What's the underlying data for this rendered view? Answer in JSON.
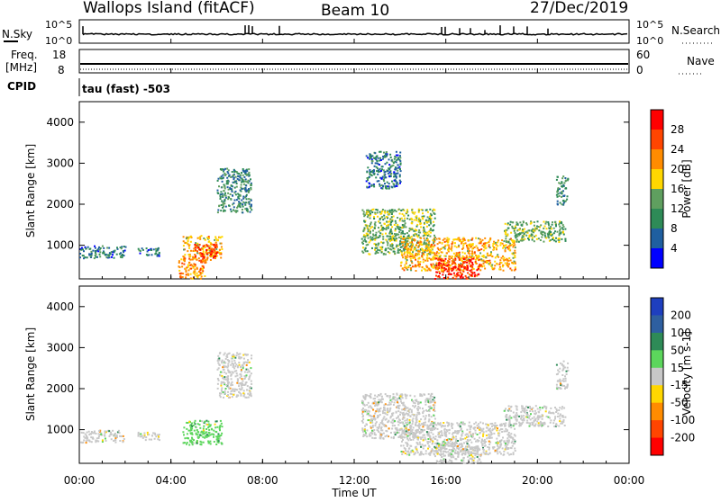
{
  "header": {
    "station": "Wallops Island (fitACF)",
    "beam": "Beam 10",
    "date": "27/Dec/2019"
  },
  "strip": {
    "nsky_label": "N.Sky",
    "nsky_ticks": [
      "10^5",
      "10^0"
    ],
    "nsearch_label": "N.Search",
    "nsearch_ticks": [
      "10^5",
      "10^0"
    ],
    "freq_label_line1": "Freq.",
    "freq_label_line2": "[MHz]",
    "freq_ticks": [
      "18",
      "8"
    ],
    "nave_label": "Nave",
    "nave_ticks": [
      "60",
      "0"
    ],
    "cpid_label": "CPID",
    "cpid_text": "tau (fast) -503"
  },
  "xaxis": {
    "label": "Time UT",
    "ticks": [
      "00:00",
      "04:00",
      "08:00",
      "12:00",
      "16:00",
      "20:00",
      "00:00"
    ]
  },
  "power_panel": {
    "ylabel": "Slant Range [km]",
    "cbar_label": "Power [dB]",
    "cbar_ticks": [
      "28",
      "24",
      "20",
      "16",
      "12",
      "8",
      "4"
    ],
    "cbar_colors": [
      "#ff0000",
      "#ff4500",
      "#ff8c00",
      "#ffd700",
      "#5f9f5f",
      "#2e8b57",
      "#1f5fa0",
      "#0000ff"
    ]
  },
  "velocity_panel": {
    "ylabel": "Slant Range [km]",
    "cbar_label": "Velocity [m s-1]",
    "cbar_ticks": [
      "200",
      "100",
      "50",
      "15",
      "-15",
      "-50",
      "-100",
      "-200"
    ],
    "cbar_colors": [
      "#1e3fbf",
      "#2e5fa0",
      "#2e8b57",
      "#5cd65c",
      "#c8c8c8",
      "#ffd700",
      "#ff8c00",
      "#ff4500",
      "#ff0000"
    ]
  },
  "chart_data": [
    {
      "type": "heatmap",
      "title": "Power [dB]",
      "xlabel": "Time UT",
      "ylabel": "Slant Range [km]",
      "xlim": [
        0,
        24
      ],
      "ylim": [
        180,
        4500
      ],
      "yticks": [
        1000,
        2000,
        3000,
        4000
      ],
      "clim": [
        0,
        32
      ],
      "regions": [
        {
          "t": [
            0.0,
            2.0
          ],
          "r": [
            700,
            1000
          ],
          "level": 8
        },
        {
          "t": [
            2.5,
            3.5
          ],
          "r": [
            750,
            950
          ],
          "level": 8
        },
        {
          "t": [
            4.5,
            6.2
          ],
          "r": [
            650,
            1250
          ],
          "level": 20
        },
        {
          "t": [
            5.0,
            6.0
          ],
          "r": [
            700,
            1050
          ],
          "level": 28
        },
        {
          "t": [
            4.3,
            5.5
          ],
          "r": [
            200,
            700
          ],
          "level": 22
        },
        {
          "t": [
            6.0,
            7.5
          ],
          "r": [
            1800,
            2900
          ],
          "level": 10
        },
        {
          "t": [
            12.3,
            15.5
          ],
          "r": [
            800,
            1900
          ],
          "level": 14
        },
        {
          "t": [
            14.0,
            19.0
          ],
          "r": [
            400,
            1200
          ],
          "level": 20
        },
        {
          "t": [
            15.5,
            17.5
          ],
          "r": [
            200,
            700
          ],
          "level": 28
        },
        {
          "t": [
            18.5,
            21.2
          ],
          "r": [
            1100,
            1600
          ],
          "level": 14
        },
        {
          "t": [
            20.8,
            21.3
          ],
          "r": [
            2000,
            2700
          ],
          "level": 10
        },
        {
          "t": [
            12.5,
            14.0
          ],
          "r": [
            2400,
            3300
          ],
          "level": 8
        }
      ]
    },
    {
      "type": "heatmap",
      "title": "Velocity [m s-1]",
      "xlabel": "Time UT",
      "ylabel": "Slant Range [km]",
      "xlim": [
        0,
        24
      ],
      "ylim": [
        180,
        4500
      ],
      "yticks": [
        1000,
        2000,
        3000,
        4000
      ],
      "clim": [
        -250,
        250
      ],
      "regions": [
        {
          "t": [
            0.0,
            2.0
          ],
          "r": [
            700,
            1000
          ],
          "v": 0
        },
        {
          "t": [
            2.5,
            3.5
          ],
          "r": [
            750,
            950
          ],
          "v": 0
        },
        {
          "t": [
            4.5,
            6.2
          ],
          "r": [
            650,
            1250
          ],
          "v": 30
        },
        {
          "t": [
            6.0,
            7.5
          ],
          "r": [
            1800,
            2900
          ],
          "v": 0
        },
        {
          "t": [
            12.3,
            15.5
          ],
          "r": [
            800,
            1900
          ],
          "v": 0
        },
        {
          "t": [
            14.0,
            19.0
          ],
          "r": [
            400,
            1200
          ],
          "v": 0
        },
        {
          "t": [
            15.5,
            17.5
          ],
          "r": [
            200,
            700
          ],
          "v": 0
        },
        {
          "t": [
            18.5,
            21.2
          ],
          "r": [
            1100,
            1600
          ],
          "v": 0
        },
        {
          "t": [
            20.8,
            21.3
          ],
          "r": [
            2000,
            2700
          ],
          "v": 0
        }
      ]
    }
  ]
}
